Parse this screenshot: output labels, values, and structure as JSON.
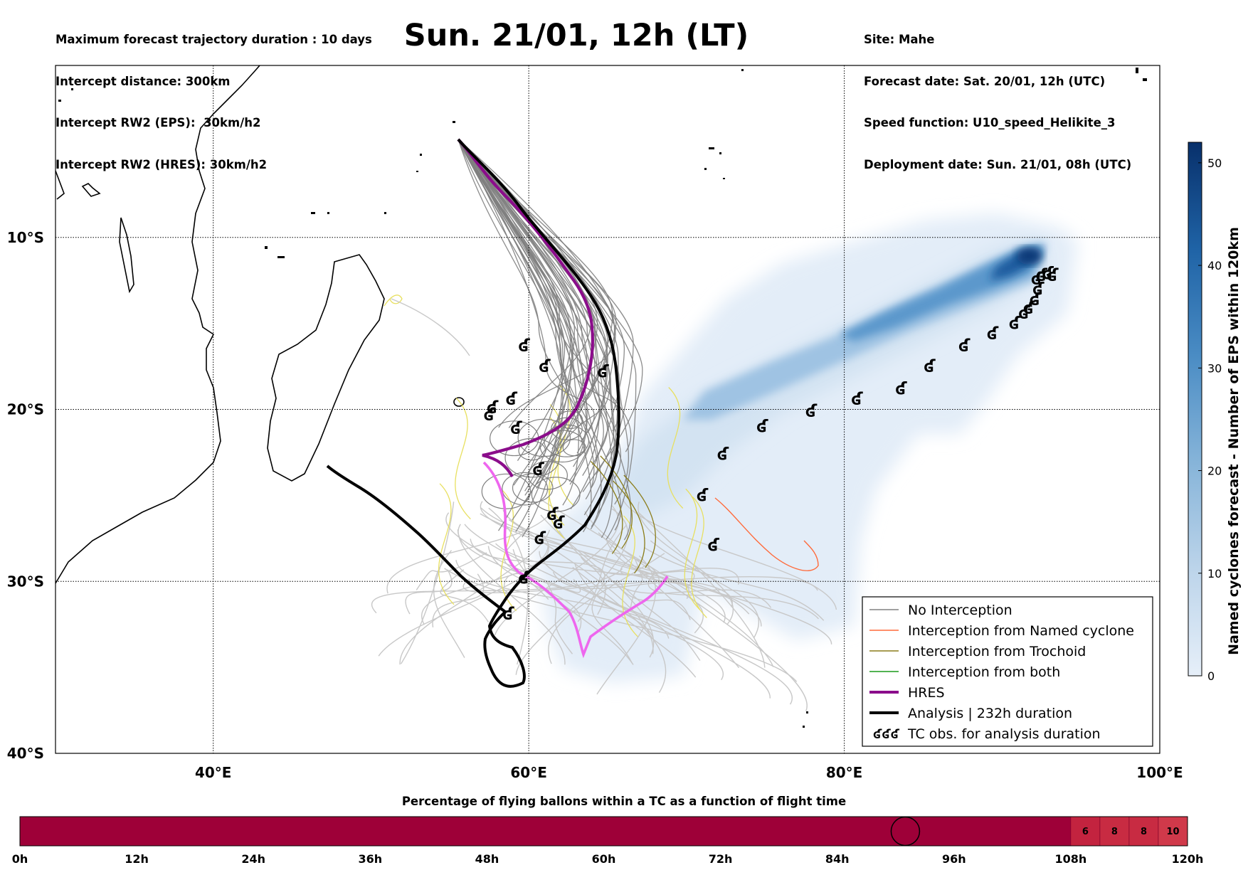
{
  "header": {
    "left_lines": [
      "Maximum forecast trajectory duration : 10 days",
      "Intercept distance: 300km",
      "Intercept RW2 (EPS):  30km/h2",
      "Intercept RW2 (HRES): 30km/h2"
    ],
    "title": "Sun. 21/01, 12h (LT)",
    "right_lines": [
      "Site: Mahe",
      "Forecast date: Sat. 20/01, 12h (UTC)",
      "Speed function: U10_speed_Helikite_3",
      "Deployment date: Sun. 21/01, 08h (UTC)"
    ]
  },
  "map": {
    "lon_range": [
      30,
      100
    ],
    "lat_range": [
      -40,
      0
    ],
    "lon_ticks": [
      {
        "value": 40,
        "label": "40°E"
      },
      {
        "value": 60,
        "label": "60°E"
      },
      {
        "value": 80,
        "label": "80°E"
      },
      {
        "value": 100,
        "label": "100°E"
      }
    ],
    "lat_ticks": [
      {
        "value": -10,
        "label": "10°S"
      },
      {
        "value": -20,
        "label": "20°S"
      },
      {
        "value": -30,
        "label": "30°S"
      },
      {
        "value": -40,
        "label": "40°S"
      }
    ],
    "grid": true,
    "colors": {
      "no_interception": "#808080",
      "named_cyclone": "#ff6a3a",
      "trochoid": "#8b7d1a",
      "both": "#1a9a1a",
      "hres": "#8b0d8b",
      "analysis": "#000000",
      "hres_late": "#ee66ee",
      "late_grey": "#c8c8c8",
      "late_yellow": "#e8e060"
    },
    "legend": {
      "position": "lower-right",
      "items": [
        {
          "label": "No Interception",
          "color": "#808080",
          "width": 1.5
        },
        {
          "label": "Interception from Named cyclone",
          "color": "#ff6a3a",
          "width": 1.5
        },
        {
          "label": "Interception from Trochoid",
          "color": "#8b7d1a",
          "width": 1.5
        },
        {
          "label": "Interception from both",
          "color": "#1a9a1a",
          "width": 1.5
        },
        {
          "label": "HRES",
          "color": "#8b0d8b",
          "width": 4
        },
        {
          "label": "Analysis | 232h duration",
          "color": "#000000",
          "width": 4
        },
        {
          "label": "TC obs. for analysis duration",
          "symbol": "ʛʛʛ"
        }
      ]
    },
    "tc_obs": [
      [
        93.2,
        -12.2
      ],
      [
        92.9,
        -12.1
      ],
      [
        92.5,
        -12.2
      ],
      [
        92.2,
        -12.4
      ],
      [
        92.3,
        -13.0
      ],
      [
        92.1,
        -13.6
      ],
      [
        91.7,
        -14.1
      ],
      [
        91.4,
        -14.4
      ],
      [
        90.8,
        -15.0
      ],
      [
        89.4,
        -15.6
      ],
      [
        87.6,
        -16.3
      ],
      [
        85.4,
        -17.5
      ],
      [
        83.6,
        -18.8
      ],
      [
        80.8,
        -19.4
      ],
      [
        77.9,
        -20.1
      ],
      [
        74.8,
        -21.0
      ],
      [
        72.3,
        -22.6
      ],
      [
        71.0,
        -25.0
      ],
      [
        71.7,
        -27.9
      ],
      [
        59.7,
        -16.3
      ],
      [
        61.0,
        -17.5
      ],
      [
        64.7,
        -17.8
      ],
      [
        57.7,
        -19.9
      ],
      [
        58.9,
        -19.4
      ],
      [
        57.5,
        -20.3
      ],
      [
        59.2,
        -21.1
      ],
      [
        60.6,
        -23.5
      ],
      [
        61.5,
        -26.1
      ],
      [
        61.9,
        -26.6
      ],
      [
        60.7,
        -27.5
      ],
      [
        59.7,
        -29.8
      ],
      [
        58.7,
        -31.9
      ]
    ]
  },
  "colorbar": {
    "label": "Named cyclones forecast - Number of EPS within 120km",
    "min": 0,
    "max": 52,
    "ticks": [
      0,
      10,
      20,
      30,
      40,
      50
    ]
  },
  "time_bar": {
    "title": "Percentage of flying ballons within a TC as a function of flight time",
    "tick_labels": [
      "0h",
      "12h",
      "24h",
      "36h",
      "48h",
      "60h",
      "72h",
      "84h",
      "96h",
      "108h",
      "120h"
    ],
    "max_hours": 120,
    "base_color": "#9e0038",
    "marker_hour": 91,
    "cells": [
      {
        "start": 108,
        "end": 111,
        "label": "6",
        "color": "#c3233f"
      },
      {
        "start": 111,
        "end": 114,
        "label": "8",
        "color": "#c82b42"
      },
      {
        "start": 114,
        "end": 117,
        "label": "8",
        "color": "#c82b42"
      },
      {
        "start": 117,
        "end": 120,
        "label": "10",
        "color": "#d0394a"
      }
    ]
  }
}
